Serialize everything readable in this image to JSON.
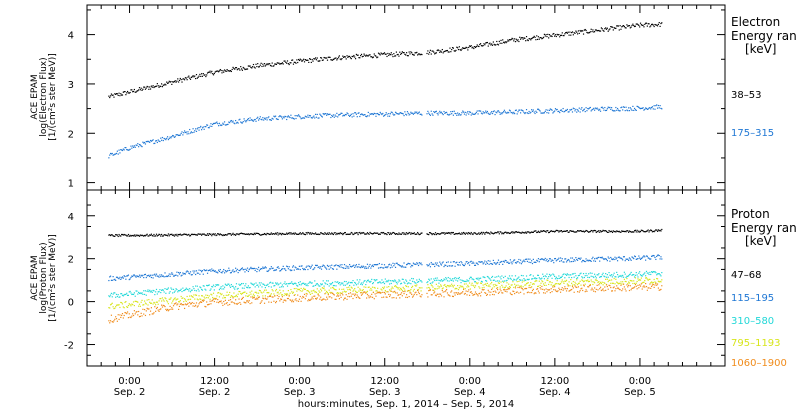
{
  "chart_data": [
    {
      "type": "scatter",
      "panel": "electron",
      "ylabel_lines": [
        "ACE EPAM",
        "log(Electron Flux)",
        "[1/(cm²s ster MeV)]"
      ],
      "ylim": [
        0.85,
        4.6
      ],
      "yticks": [
        1,
        2,
        3,
        4
      ],
      "legend_title": [
        "Electron",
        "Energy ran",
        "[keV]"
      ],
      "series": [
        {
          "name": "38–53",
          "color": "#000000",
          "points": [
            [
              -3,
              2.75
            ],
            [
              0,
              2.85
            ],
            [
              6,
              3.05
            ],
            [
              12,
              3.25
            ],
            [
              18,
              3.38
            ],
            [
              24,
              3.47
            ],
            [
              30,
              3.55
            ],
            [
              36,
              3.6
            ],
            [
              42,
              3.65
            ],
            [
              48,
              3.75
            ],
            [
              54,
              3.9
            ],
            [
              60,
              4.0
            ],
            [
              66,
              4.1
            ],
            [
              72,
              4.2
            ],
            [
              75,
              4.22
            ]
          ]
        },
        {
          "name": "175–315",
          "color": "#1f77d4",
          "points": [
            [
              -3,
              1.55
            ],
            [
              0,
              1.72
            ],
            [
              6,
              1.95
            ],
            [
              12,
              2.2
            ],
            [
              18,
              2.3
            ],
            [
              24,
              2.35
            ],
            [
              30,
              2.38
            ],
            [
              36,
              2.4
            ],
            [
              42,
              2.42
            ],
            [
              48,
              2.42
            ],
            [
              54,
              2.44
            ],
            [
              60,
              2.47
            ],
            [
              66,
              2.5
            ],
            [
              72,
              2.52
            ],
            [
              75,
              2.55
            ]
          ]
        }
      ]
    },
    {
      "type": "scatter",
      "panel": "proton",
      "ylabel_lines": [
        "ACE EPAM",
        "log(Proton Flux)",
        "[1/(cm²s ster MeV)]"
      ],
      "ylim": [
        -3,
        5.2
      ],
      "yticks": [
        -2,
        0,
        2,
        4
      ],
      "legend_title": [
        "Proton",
        "Energy ran",
        "[keV]"
      ],
      "series": [
        {
          "name": "47–68",
          "color": "#000000",
          "points": [
            [
              -3,
              3.1
            ],
            [
              12,
              3.15
            ],
            [
              24,
              3.2
            ],
            [
              36,
              3.2
            ],
            [
              48,
              3.2
            ],
            [
              60,
              3.3
            ],
            [
              72,
              3.3
            ],
            [
              75,
              3.35
            ]
          ]
        },
        {
          "name": "115–195",
          "color": "#1f77d4",
          "points": [
            [
              -3,
              1.1
            ],
            [
              6,
              1.3
            ],
            [
              12,
              1.45
            ],
            [
              24,
              1.6
            ],
            [
              36,
              1.7
            ],
            [
              48,
              1.8
            ],
            [
              60,
              1.95
            ],
            [
              72,
              2.05
            ],
            [
              75,
              2.1
            ]
          ]
        },
        {
          "name": "310–580",
          "color": "#22d8d8",
          "points": [
            [
              -3,
              0.3
            ],
            [
              6,
              0.55
            ],
            [
              12,
              0.7
            ],
            [
              24,
              0.85
            ],
            [
              36,
              0.95
            ],
            [
              48,
              1.05
            ],
            [
              60,
              1.2
            ],
            [
              72,
              1.3
            ],
            [
              75,
              1.35
            ]
          ]
        },
        {
          "name": "795–1193",
          "color": "#d7e51c",
          "points": [
            [
              -3,
              -0.2
            ],
            [
              6,
              0.1
            ],
            [
              12,
              0.3
            ],
            [
              24,
              0.5
            ],
            [
              36,
              0.6
            ],
            [
              48,
              0.75
            ],
            [
              60,
              0.9
            ],
            [
              72,
              1.0
            ],
            [
              75,
              1.05
            ]
          ]
        },
        {
          "name": "1060–1900",
          "color": "#f08c1c",
          "points": [
            [
              -3,
              -0.8
            ],
            [
              3,
              -0.4
            ],
            [
              6,
              -0.2
            ],
            [
              12,
              0.0
            ],
            [
              24,
              0.2
            ],
            [
              36,
              0.35
            ],
            [
              48,
              0.45
            ],
            [
              60,
              0.6
            ],
            [
              72,
              0.7
            ],
            [
              75,
              0.72
            ]
          ]
        }
      ]
    }
  ],
  "x_axis": {
    "range_hours": [
      -6,
      84
    ],
    "ticks": [
      {
        "hour": 0,
        "time": "0:00",
        "day": "Sep. 2"
      },
      {
        "hour": 12,
        "time": "12:00",
        "day": "Sep. 2"
      },
      {
        "hour": 24,
        "time": "0:00",
        "day": "Sep. 3"
      },
      {
        "hour": 36,
        "time": "12:00",
        "day": "Sep. 3"
      },
      {
        "hour": 48,
        "time": "0:00",
        "day": "Sep. 4"
      },
      {
        "hour": 60,
        "time": "12:00",
        "day": "Sep. 4"
      },
      {
        "hour": 72,
        "time": "0:00",
        "day": "Sep. 5"
      }
    ],
    "label": "hours:minutes, Sep.  1, 2014 – Sep.  5, 2014"
  }
}
